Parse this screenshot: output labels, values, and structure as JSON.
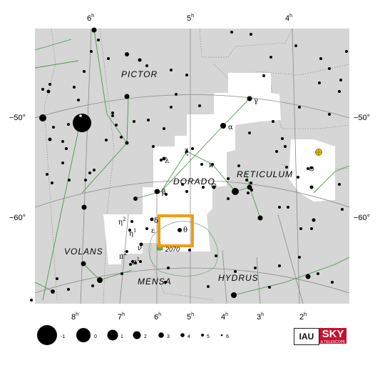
{
  "constellations": {
    "pictor": "PICTOR",
    "dorado": "DORADO",
    "reticulum": "RETICULUM",
    "volans": "VOLANS",
    "mensa": "MENSA",
    "hydrus": "HYDRUS"
  },
  "ra_top": [
    "6",
    "5",
    "4"
  ],
  "ra_bottom": [
    "8",
    "7",
    "6",
    "5",
    "4",
    "3",
    "2"
  ],
  "ra_unit": "h",
  "dec_labels": [
    "−50°",
    "−60°"
  ],
  "star_labels": {
    "gamma": "γ",
    "alpha": "α",
    "zeta": "ζ",
    "lambda": "λ",
    "kappa": "κ",
    "beta": "β",
    "delta": "δ",
    "theta": "θ",
    "epsilon": "ε",
    "eta2": "η",
    "eta2_sup": "2",
    "eta1": "η",
    "eta1_sup": "1",
    "nu": "ν",
    "pi2": "π",
    "pi2_sup": "2",
    "pi1": "π",
    "pi1_sup": "1"
  },
  "ngc_label": "2070",
  "magnitude_scale": [
    "-1",
    "0",
    "1",
    "2",
    "3",
    "4",
    "5",
    "6"
  ],
  "logos": {
    "iau": "IAU",
    "sky": "SKY",
    "sky_sub": "& TELESCOPE"
  },
  "colors": {
    "panel": "#d6d6d6",
    "constellation_area": "#ffffff",
    "stick_lines": "#4a9a4a",
    "grid_lines": "#8a8a8a",
    "highlight_box": "#f39c12",
    "lmc_outline": "#6aa86a"
  }
}
